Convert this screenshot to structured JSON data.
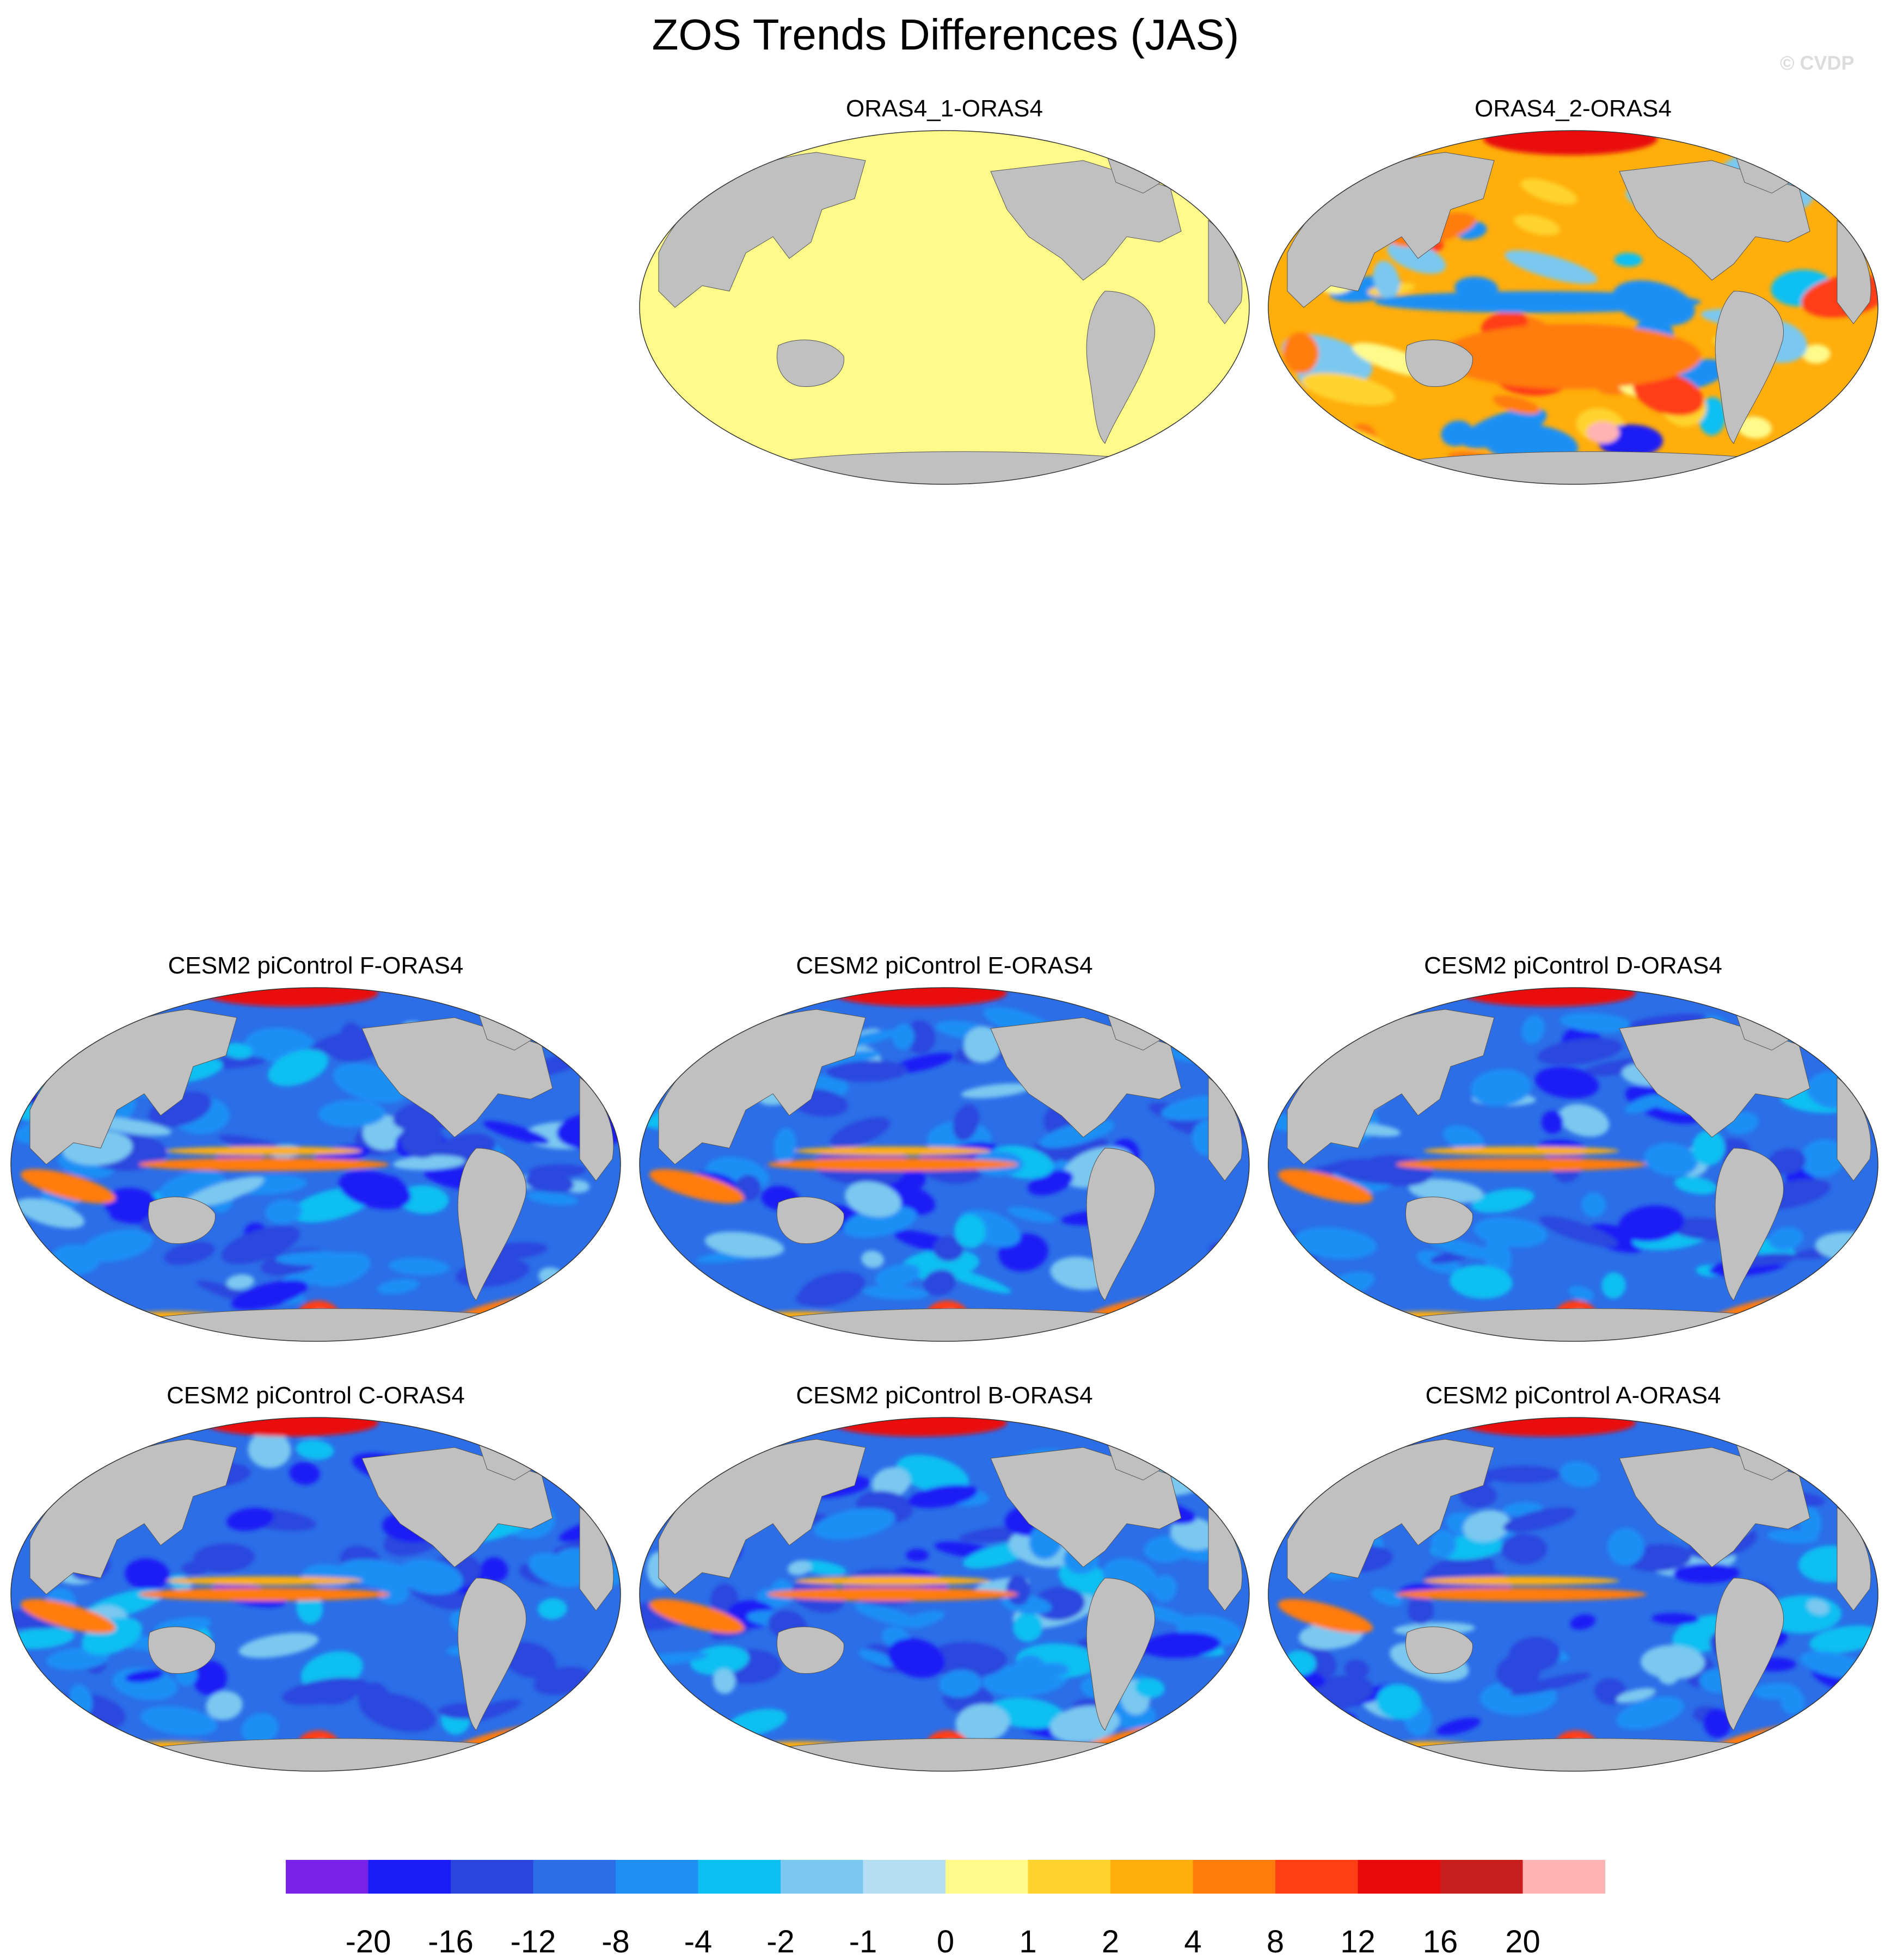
{
  "title": "ZOS Trends Differences (JAS)",
  "watermark": "© CVDP",
  "panels": [
    {
      "label": "ORAS4_1-ORAS4",
      "kind": "uniform"
    },
    {
      "label": "ORAS4_2-ORAS4",
      "kind": "obs"
    },
    {
      "label": "CESM2 piControl F-ORAS4",
      "kind": "model"
    },
    {
      "label": "CESM2 piControl E-ORAS4",
      "kind": "model"
    },
    {
      "label": "CESM2 piControl D-ORAS4",
      "kind": "model"
    },
    {
      "label": "CESM2 piControl C-ORAS4",
      "kind": "model"
    },
    {
      "label": "CESM2 piControl B-ORAS4",
      "kind": "model"
    },
    {
      "label": "CESM2 piControl A-ORAS4",
      "kind": "model"
    }
  ],
  "colorbar": {
    "colors": [
      "#7b22ea",
      "#1b1bf5",
      "#2b46de",
      "#2c6ee8",
      "#1f8ff5",
      "#0cbff2",
      "#7ac8f0",
      "#b5def2",
      "#fffa8a",
      "#ffd32e",
      "#ffae0c",
      "#ff7b0a",
      "#ff3e14",
      "#e90a0a",
      "#c81e1e",
      "#ffb3b3"
    ],
    "labels": [
      "-20",
      "-16",
      "-12",
      "-8",
      "-4",
      "-2",
      "-1",
      "0",
      "1",
      "2",
      "4",
      "8",
      "12",
      "16",
      "20"
    ]
  },
  "land_color": "#c0c0c0"
}
